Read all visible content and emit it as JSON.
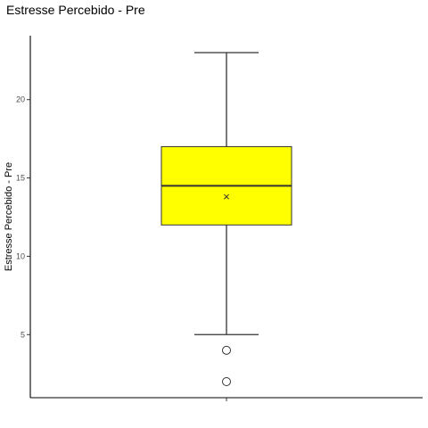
{
  "chart_data": {
    "type": "box",
    "title": "Estresse Percebido - Pre",
    "xlabel": "",
    "ylabel": "Estresse Percebido - Pre",
    "ylim": [
      1.0,
      23.0
    ],
    "yticks": [
      5,
      10,
      15,
      20
    ],
    "grid": false,
    "legend": "none",
    "boxes": [
      {
        "whisker_low": 5,
        "q1": 12,
        "median": 14.5,
        "q3": 17,
        "whisker_high": 23,
        "mean": 13.8,
        "outliers": [
          4,
          2
        ]
      }
    ],
    "colors": {
      "box_fill": "#ffff00",
      "box_stroke": "#333333",
      "axis": "#000000"
    }
  }
}
